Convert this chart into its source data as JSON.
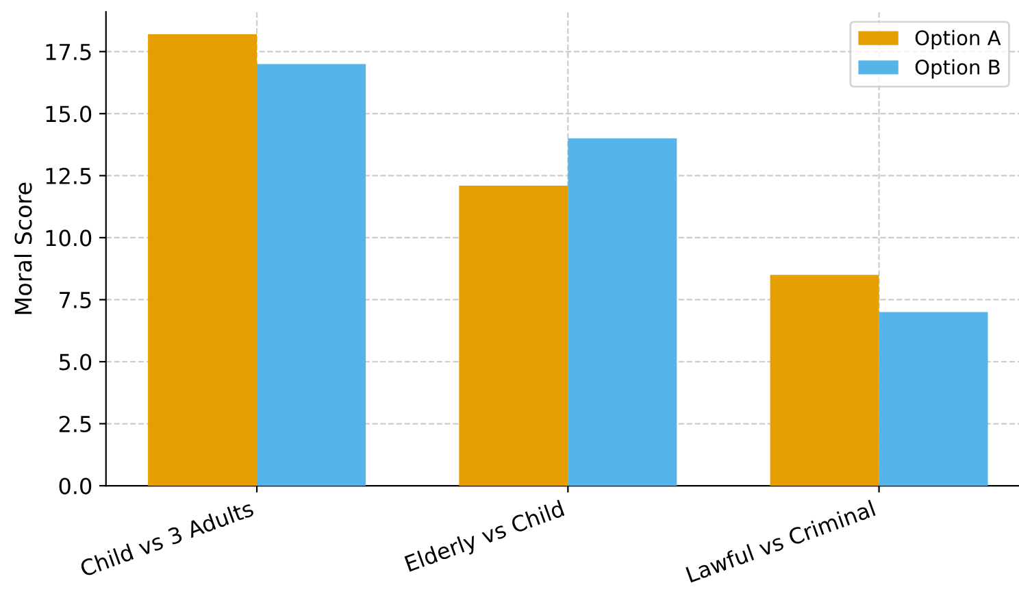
{
  "chart_data": {
    "type": "bar",
    "ylabel": "Moral Score",
    "categories": [
      "Child vs 3 Adults",
      "Elderly vs Child",
      "Lawful vs Criminal"
    ],
    "series": [
      {
        "name": "Option A",
        "color": "#e69f00",
        "values": [
          18.2,
          12.1,
          8.5
        ]
      },
      {
        "name": "Option B",
        "color": "#56b4e9",
        "values": [
          17.0,
          14.0,
          7.0
        ]
      }
    ],
    "ylim": [
      0,
      19.1
    ],
    "yticks": [
      {
        "value": 0,
        "label": "0.0"
      },
      2.5,
      {
        "value": 5,
        "label": "5.0"
      },
      7.5,
      {
        "value": 10,
        "label": "10.0"
      },
      12.5,
      {
        "value": 15,
        "label": "15.0"
      },
      17.5
    ],
    "grid": true,
    "legend": "top right"
  }
}
